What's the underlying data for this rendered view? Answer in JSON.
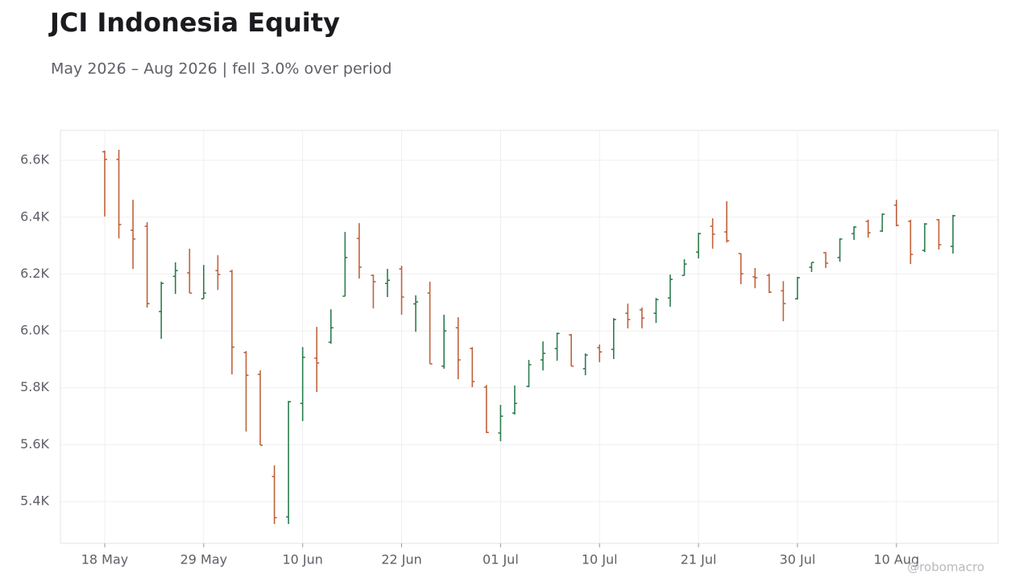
{
  "chart_data": {
    "type": "ohlc",
    "title": "JCI Indonesia Equity",
    "subtitle": "May 2026 – Aug 2026 | fell 3.0% over period",
    "watermark": "@robomacro",
    "up_color": "#2e7d4f",
    "down_color": "#c0623a",
    "grid": true,
    "categories": [
      "18 May",
      null,
      null,
      null,
      null,
      null,
      null,
      "29 May",
      null,
      null,
      null,
      null,
      null,
      null,
      "10 Jun",
      null,
      null,
      null,
      null,
      null,
      null,
      "22 Jun",
      null,
      null,
      null,
      null,
      null,
      null,
      "01 Jul",
      null,
      null,
      null,
      null,
      null,
      null,
      "10 Jul",
      null,
      null,
      null,
      null,
      null,
      null,
      "21 Jul",
      null,
      null,
      null,
      null,
      null,
      null,
      "30 Jul",
      null,
      null,
      null,
      null,
      null,
      null,
      "10 Aug",
      null,
      null,
      null,
      null
    ],
    "open": [
      6630,
      6603,
      6354,
      6368,
      6068,
      6192,
      6204,
      6113,
      6212,
      6209,
      5924,
      5847,
      5488,
      5346,
      5745,
      5904,
      5960,
      6122,
      6325,
      6195,
      6167,
      6218,
      6095,
      6133,
      5876,
      6011,
      5938,
      5802,
      5641,
      5711,
      5805,
      5898,
      5938,
      5986,
      5867,
      5941,
      5935,
      6062,
      6074,
      6062,
      6116,
      6195,
      6277,
      6368,
      6348,
      6272,
      6190,
      6195,
      6141,
      6113,
      6224,
      6275,
      6258,
      6342,
      6385,
      6351,
      6442,
      6385,
      6283,
      6391,
      6297
    ],
    "high": [
      6634,
      6637,
      6461,
      6382,
      6173,
      6241,
      6289,
      6232,
      6266,
      6215,
      5929,
      5861,
      5527,
      5754,
      5943,
      6014,
      6076,
      6348,
      6379,
      6198,
      6218,
      6229,
      6125,
      6173,
      6057,
      6048,
      5943,
      5810,
      5740,
      5808,
      5898,
      5963,
      5994,
      5989,
      5921,
      5952,
      6045,
      6096,
      6082,
      6116,
      6198,
      6252,
      6345,
      6396,
      6456,
      6272,
      6221,
      6201,
      6175,
      6190,
      6241,
      6277,
      6325,
      6368,
      6391,
      6413,
      6461,
      6391,
      6379,
      6393,
      6408
    ],
    "low": [
      6402,
      6325,
      6218,
      6082,
      5972,
      6130,
      6133,
      6113,
      6144,
      5847,
      5646,
      5598,
      5321,
      5321,
      5683,
      5785,
      5955,
      6122,
      6184,
      6079,
      6119,
      6057,
      5997,
      5884,
      5867,
      5830,
      5802,
      5641,
      5612,
      5706,
      5802,
      5861,
      5895,
      5876,
      5844,
      5890,
      5901,
      6009,
      6009,
      6028,
      6085,
      6195,
      6255,
      6289,
      6311,
      6164,
      6150,
      6133,
      6034,
      6110,
      6207,
      6221,
      6243,
      6320,
      6328,
      6348,
      6368,
      6235,
      6277,
      6286,
      6272
    ],
    "close": [
      6603,
      6374,
      6323,
      6096,
      6167,
      6212,
      6133,
      6133,
      6198,
      5943,
      5844,
      5598,
      5343,
      5751,
      5907,
      5887,
      6011,
      6258,
      6224,
      6173,
      6178,
      6119,
      6102,
      5884,
      6000,
      5898,
      5822,
      5643,
      5700,
      5745,
      5881,
      5921,
      5991,
      5876,
      5915,
      5926,
      6040,
      6040,
      6045,
      6110,
      6181,
      6235,
      6342,
      6340,
      6317,
      6201,
      6187,
      6136,
      6096,
      6187,
      6241,
      6238,
      6323,
      6365,
      6345,
      6410,
      6371,
      6269,
      6376,
      6303,
      6405
    ],
    "ylim": [
      5253,
      6705
    ],
    "yticks": [
      {
        "value": 5400,
        "label": "5.4K"
      },
      {
        "value": 5600,
        "label": "5.6K"
      },
      {
        "value": 5800,
        "label": "5.8K"
      },
      {
        "value": 6000,
        "label": "6.0K"
      },
      {
        "value": 6200,
        "label": "6.2K"
      },
      {
        "value": 6400,
        "label": "6.4K"
      },
      {
        "value": 6600,
        "label": "6.6K"
      }
    ]
  }
}
